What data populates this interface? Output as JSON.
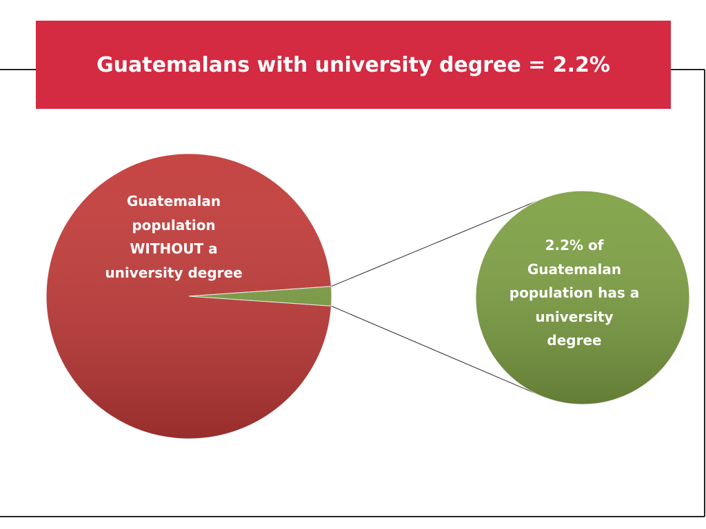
{
  "chart_data": {
    "type": "pie",
    "title": "Guatemalans with university degree = 2.2%",
    "categories": [
      "Guatemalan\npopulation\nWITHOUT a\nuniversity degree",
      "2.2% of\nGuatemalan\npopulation has a\nuniversity degree"
    ],
    "values": [
      97.8,
      2.2
    ],
    "colors": [
      "#c23a38",
      "#7ea043"
    ]
  }
}
